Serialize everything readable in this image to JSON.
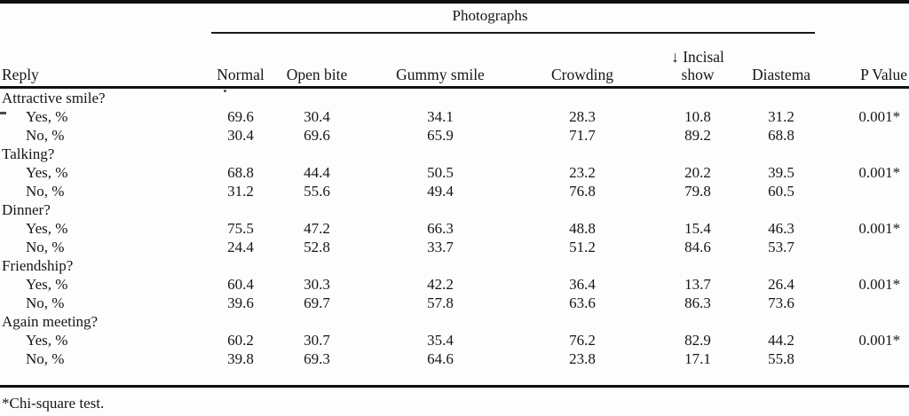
{
  "table": {
    "spanner_label": "Photographs",
    "columns": {
      "reply": "Reply",
      "normal": "Normal",
      "open_bite": "Open bite",
      "gummy_smile": "Gummy smile",
      "crowding": "Crowding",
      "incisal_line1": "↓ Incisal",
      "incisal_line2": "show",
      "diastema": "Diastema",
      "p_value": "P Value"
    },
    "groups": [
      {
        "label": "Attractive smile?",
        "rows": [
          {
            "label": "Yes, %",
            "values": [
              "69.6",
              "30.4",
              "34.1",
              "28.3",
              "10.8",
              "31.2"
            ],
            "p_value": "0.001*"
          },
          {
            "label": "No, %",
            "values": [
              "30.4",
              "69.6",
              "65.9",
              "71.7",
              "89.2",
              "68.8"
            ],
            "p_value": ""
          }
        ]
      },
      {
        "label": "Talking?",
        "rows": [
          {
            "label": "Yes, %",
            "values": [
              "68.8",
              "44.4",
              "50.5",
              "23.2",
              "20.2",
              "39.5"
            ],
            "p_value": "0.001*"
          },
          {
            "label": "No, %",
            "values": [
              "31.2",
              "55.6",
              "49.4",
              "76.8",
              "79.8",
              "60.5"
            ],
            "p_value": ""
          }
        ]
      },
      {
        "label": "Dinner?",
        "rows": [
          {
            "label": "Yes, %",
            "values": [
              "75.5",
              "47.2",
              "66.3",
              "48.8",
              "15.4",
              "46.3"
            ],
            "p_value": "0.001*"
          },
          {
            "label": "No, %",
            "values": [
              "24.4",
              "52.8",
              "33.7",
              "51.2",
              "84.6",
              "53.7"
            ],
            "p_value": ""
          }
        ]
      },
      {
        "label": "Friendship?",
        "rows": [
          {
            "label": "Yes, %",
            "values": [
              "60.4",
              "30.3",
              "42.2",
              "36.4",
              "13.7",
              "26.4"
            ],
            "p_value": "0.001*"
          },
          {
            "label": "No, %",
            "values": [
              "39.6",
              "69.7",
              "57.8",
              "63.6",
              "86.3",
              "73.6"
            ],
            "p_value": ""
          }
        ]
      },
      {
        "label": "Again meeting?",
        "rows": [
          {
            "label": "Yes, %",
            "values": [
              "60.2",
              "30.7",
              "35.4",
              "76.2",
              "82.9",
              "44.2"
            ],
            "p_value": "0.001*"
          },
          {
            "label": "No, %",
            "values": [
              "39.8",
              "69.3",
              "64.6",
              "23.8",
              "17.1",
              "55.8"
            ],
            "p_value": ""
          }
        ]
      }
    ],
    "footnote": "*Chi-square test."
  }
}
